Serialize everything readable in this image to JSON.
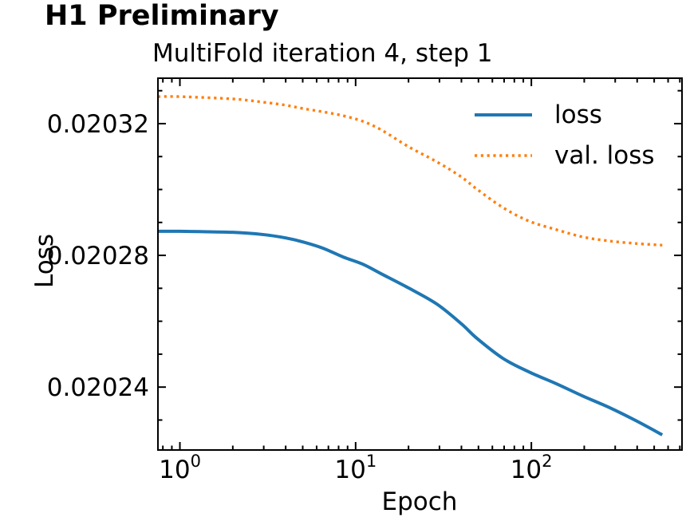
{
  "header": {
    "title": "H1 Preliminary"
  },
  "chart_data": {
    "type": "line",
    "title": "MultiFold iteration 4, step 1",
    "xlabel": "Epoch",
    "ylabel": "Loss",
    "x_scale": "log",
    "grid": false,
    "xlim": [
      0.75,
      720
    ],
    "ylim": [
      0.0202209,
      0.0203338
    ],
    "x_major_ticks": [
      {
        "value": 1,
        "base": "10",
        "exponent": "0"
      },
      {
        "value": 10,
        "base": "10",
        "exponent": "1"
      },
      {
        "value": 100,
        "base": "10",
        "exponent": "2"
      }
    ],
    "y_major_ticks": [
      {
        "value": 0.02024,
        "label": "0.02024"
      },
      {
        "value": 0.02028,
        "label": "0.02028"
      },
      {
        "value": 0.02032,
        "label": "0.02032"
      }
    ],
    "y_minor_step": 1e-05,
    "legend": {
      "position": "upper right",
      "frame": false
    },
    "x": [
      0.75,
      1,
      2,
      3,
      4,
      5,
      6.5,
      8.5,
      11,
      14,
      20,
      29,
      40,
      49,
      69,
      97,
      139,
      196,
      275,
      394,
      556
    ],
    "series": [
      {
        "name": "loss",
        "color": "#1f77b4",
        "style": "solid",
        "values": [
          0.0202873,
          0.0202873,
          0.020287,
          0.0202863,
          0.0202853,
          0.0202841,
          0.0202822,
          0.0202795,
          0.0202773,
          0.0202744,
          0.0202701,
          0.0202652,
          0.0202592,
          0.0202548,
          0.0202487,
          0.0202446,
          0.020241,
          0.0202373,
          0.0202339,
          0.0202298,
          0.0202255
        ]
      },
      {
        "name": "val. loss",
        "color": "#ff7f0e",
        "style": "dotted",
        "values": [
          0.0203282,
          0.0203282,
          0.0203275,
          0.0203265,
          0.0203256,
          0.0203246,
          0.0203236,
          0.0203224,
          0.0203207,
          0.0203181,
          0.020313,
          0.0203084,
          0.0203038,
          0.0203001,
          0.0202945,
          0.0202904,
          0.0202878,
          0.0202856,
          0.0202844,
          0.0202836,
          0.0202831
        ]
      }
    ]
  }
}
